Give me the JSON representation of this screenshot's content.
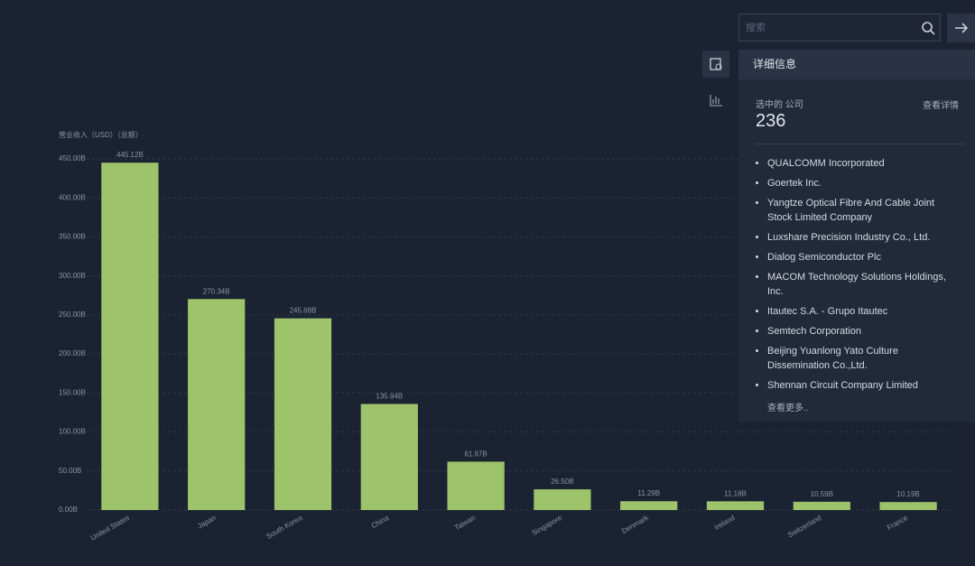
{
  "chart_data": {
    "type": "bar",
    "y_label": "营业收入（USD）（总额）",
    "categories": [
      "United States",
      "Japan",
      "South Korea",
      "China",
      "Taiwan",
      "Singapore",
      "Denmark",
      "Ireland",
      "Switzerland",
      "France"
    ],
    "values": [
      445.12,
      270.34,
      245.68,
      135.94,
      61.97,
      26.5,
      11.29,
      11.18,
      10.59,
      10.19
    ],
    "value_labels": [
      "445.12B",
      "270.34B",
      "245.68B",
      "135.94B",
      "61.97B",
      "26.50B",
      "11.29B",
      "11.18B",
      "10.59B",
      "10.19B"
    ],
    "color": "#9dc36b",
    "ylim": [
      0,
      450
    ],
    "yticks": [
      {
        "value": 0,
        "label": "0.00B"
      },
      {
        "value": 50,
        "label": "50.00B"
      },
      {
        "value": 100,
        "label": "100.00B"
      },
      {
        "value": 150,
        "label": "150.00B"
      },
      {
        "value": 200,
        "label": "200.00B"
      },
      {
        "value": 250,
        "label": "250.00B"
      },
      {
        "value": 300,
        "label": "300.00B"
      },
      {
        "value": 350,
        "label": "350.00B"
      },
      {
        "value": 400,
        "label": "400.00B"
      },
      {
        "value": 450,
        "label": "450.00B"
      }
    ],
    "grid": true
  },
  "panel": {
    "search_placeholder": "搜索",
    "title": "详细信息",
    "selected_label": "选中的 公司",
    "selected_count": "236",
    "details_link": "查看详情",
    "companies": [
      "QUALCOMM Incorporated",
      "Goertek Inc.",
      "Yangtze Optical Fibre And Cable Joint Stock Limited Company",
      "Luxshare Precision Industry Co., Ltd.",
      "Dialog Semiconductor Plc",
      "MACOM Technology Solutions Holdings, Inc.",
      "Itautec S.A. - Grupo Itautec",
      "Semtech Corporation",
      "Beijing Yuanlong Yato Culture Dissemination Co.,Ltd.",
      "Shennan Circuit Company Limited"
    ],
    "more_link": "查看更多.."
  }
}
